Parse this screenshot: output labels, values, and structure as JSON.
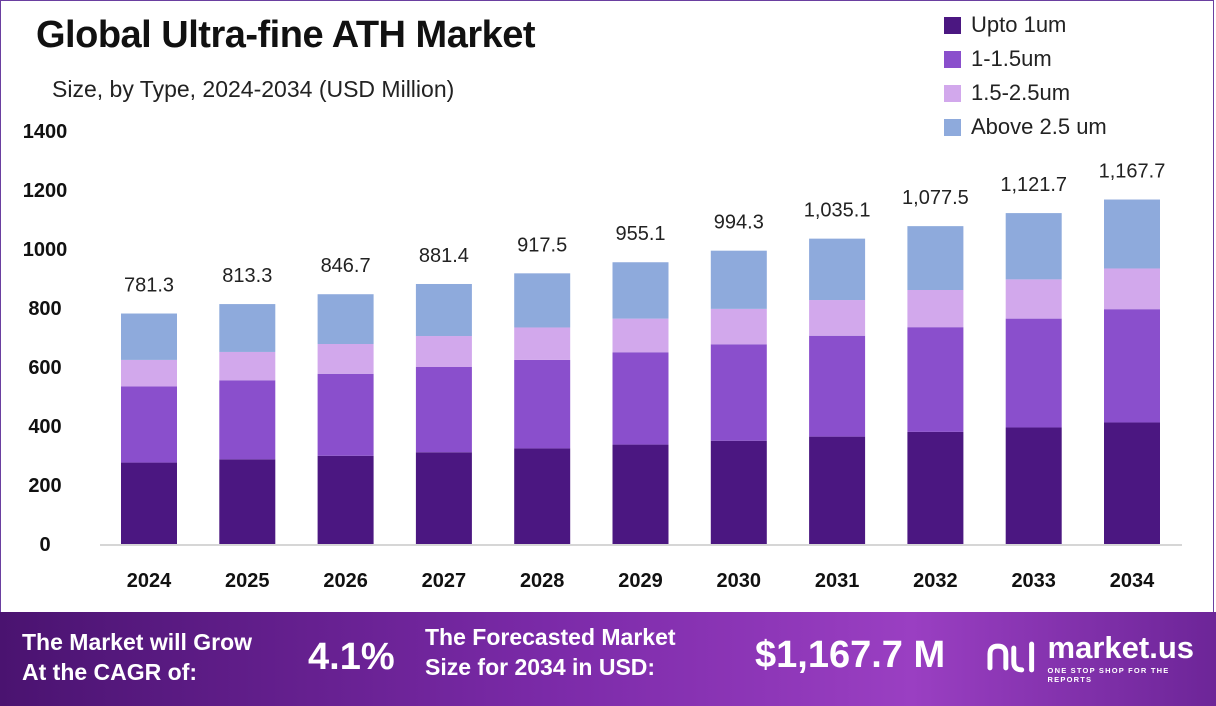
{
  "chart_data": {
    "type": "bar",
    "stacked": true,
    "title": "Global Ultra-fine ATH Market",
    "subtitle": "Size, by Type, 2024-2034 (USD Million)",
    "categories": [
      "2024",
      "2025",
      "2026",
      "2027",
      "2028",
      "2029",
      "2030",
      "2031",
      "2032",
      "2033",
      "2034"
    ],
    "series": [
      {
        "name": "Upto 1um",
        "color": "#4b1781",
        "values": [
          276,
          287,
          299,
          311,
          324,
          337,
          350,
          364,
          380,
          395,
          412
        ]
      },
      {
        "name": "1-1.5um",
        "color": "#8a4fcc",
        "values": [
          258,
          268,
          278,
          289,
          300,
          313,
          327,
          342,
          355,
          369,
          384
        ]
      },
      {
        "name": "1.5-2.5um",
        "color": "#d2a8ec",
        "values": [
          90,
          96,
          101,
          105,
          110,
          114,
          120,
          121,
          126,
          133,
          138
        ]
      },
      {
        "name": "Above 2.5 um",
        "color": "#8eaadc",
        "values": [
          157.3,
          162.3,
          168.7,
          176.4,
          183.5,
          191.1,
          197.3,
          208.1,
          216.5,
          224.7,
          233.7
        ]
      }
    ],
    "totals": [
      "781.3",
      "813.3",
      "846.7",
      "881.4",
      "917.5",
      "955.1",
      "994.3",
      "1,035.1",
      "1,077.5",
      "1,121.7",
      "1,167.7"
    ],
    "yticks": [
      "0",
      "200",
      "400",
      "600",
      "800",
      "1000",
      "1200",
      "1400"
    ],
    "ylim": [
      0,
      1400
    ],
    "legend": "top-right",
    "grid": false
  },
  "footer": {
    "cagr_label_line1": "The Market will Grow",
    "cagr_label_line2": "At the CAGR of:",
    "cagr_value": "4.1%",
    "forecast_label_line1": "The Forecasted Market",
    "forecast_label_line2": "Size for 2034 in USD:",
    "forecast_value": "$1,167.7 M",
    "brand_name": "market.us",
    "brand_tagline": "ONE STOP SHOP FOR THE REPORTS"
  }
}
